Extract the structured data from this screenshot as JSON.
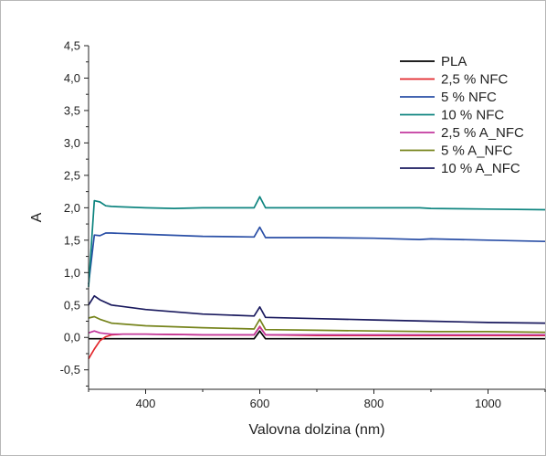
{
  "chart_data": {
    "type": "line",
    "xlabel": "Valovna dolzina (nm)",
    "ylabel": "A",
    "xlim": [
      300,
      1100
    ],
    "ylim": [
      -0.8,
      4.5
    ],
    "x_ticks": [
      400,
      600,
      800,
      1000
    ],
    "x_tick_labels": [
      "400",
      "600",
      "800",
      "1000"
    ],
    "y_ticks": [
      -0.5,
      0.0,
      0.5,
      1.0,
      1.5,
      2.0,
      2.5,
      3.0,
      3.5,
      4.0,
      4.5
    ],
    "y_tick_labels": [
      "-0,5",
      "0,0",
      "0,5",
      "1,0",
      "1,5",
      "2,0",
      "2,5",
      "3,0",
      "3,5",
      "4,0",
      "4,5"
    ],
    "grid": false,
    "legend_position": "top-right",
    "series": [
      {
        "name": "PLA",
        "color": "#000000",
        "x": [
          300,
          310,
          320,
          340,
          400,
          500,
          590,
          600,
          610,
          700,
          800,
          900,
          1000,
          1100
        ],
        "y": [
          -0.02,
          -0.02,
          -0.02,
          -0.02,
          -0.02,
          -0.02,
          -0.02,
          0.1,
          -0.02,
          -0.02,
          -0.02,
          -0.02,
          -0.02,
          -0.02
        ]
      },
      {
        "name": "2,5 % NFC",
        "color": "#e3262b",
        "x": [
          300,
          310,
          320,
          330,
          340,
          360,
          400,
          500,
          590,
          600,
          610,
          700,
          800,
          900,
          1000,
          1100
        ],
        "y": [
          -0.33,
          -0.18,
          -0.05,
          0.01,
          0.04,
          0.05,
          0.05,
          0.04,
          0.04,
          0.17,
          0.04,
          0.03,
          0.03,
          0.03,
          0.03,
          0.03
        ]
      },
      {
        "name": "5 % NFC",
        "color": "#2a4fa6",
        "x": [
          300,
          310,
          320,
          330,
          340,
          400,
          500,
          590,
          600,
          610,
          700,
          800,
          880,
          900,
          1000,
          1100
        ],
        "y": [
          0.82,
          1.58,
          1.57,
          1.61,
          1.61,
          1.59,
          1.56,
          1.55,
          1.7,
          1.54,
          1.54,
          1.53,
          1.51,
          1.52,
          1.5,
          1.48
        ]
      },
      {
        "name": "10 % NFC",
        "color": "#0f8580",
        "x": [
          300,
          310,
          320,
          330,
          340,
          400,
          450,
          500,
          590,
          600,
          610,
          700,
          800,
          880,
          900,
          1000,
          1100
        ],
        "y": [
          0.78,
          2.11,
          2.09,
          2.03,
          2.02,
          2.0,
          1.99,
          2.0,
          2.0,
          2.17,
          2.0,
          2.0,
          2.0,
          2.0,
          1.99,
          1.98,
          1.97
        ]
      },
      {
        "name": "2,5 % A_NFC",
        "color": "#c2389e",
        "x": [
          300,
          310,
          320,
          340,
          400,
          500,
          590,
          600,
          610,
          700,
          800,
          900,
          1000,
          1100
        ],
        "y": [
          0.07,
          0.1,
          0.07,
          0.05,
          0.05,
          0.04,
          0.04,
          0.16,
          0.04,
          0.04,
          0.04,
          0.04,
          0.04,
          0.04
        ]
      },
      {
        "name": "5 % A_NFC",
        "color": "#76841c",
        "x": [
          300,
          310,
          320,
          340,
          400,
          500,
          590,
          600,
          610,
          700,
          800,
          900,
          1000,
          1100
        ],
        "y": [
          0.3,
          0.32,
          0.28,
          0.22,
          0.18,
          0.15,
          0.13,
          0.28,
          0.12,
          0.11,
          0.1,
          0.09,
          0.09,
          0.08
        ]
      },
      {
        "name": "10 % A_NFC",
        "color": "#1a1a5e",
        "x": [
          300,
          310,
          320,
          340,
          400,
          500,
          590,
          600,
          610,
          700,
          800,
          900,
          1000,
          1100
        ],
        "y": [
          0.5,
          0.64,
          0.58,
          0.5,
          0.43,
          0.36,
          0.33,
          0.47,
          0.31,
          0.29,
          0.27,
          0.25,
          0.23,
          0.22
        ]
      }
    ]
  }
}
